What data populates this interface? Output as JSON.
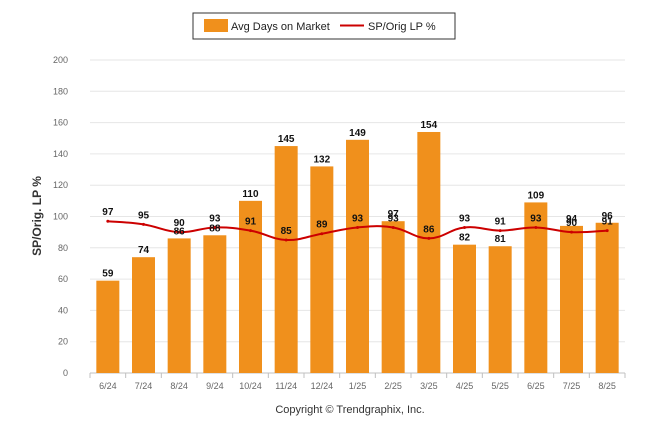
{
  "chart_data": {
    "type": "bar",
    "categories": [
      "6/24",
      "7/24",
      "8/24",
      "9/24",
      "10/24",
      "11/24",
      "12/24",
      "1/25",
      "2/25",
      "3/25",
      "4/25",
      "5/25",
      "6/25",
      "7/25",
      "8/25"
    ],
    "series": [
      {
        "name": "Avg Days on Market",
        "type": "bar",
        "color": "#F0901C",
        "values": [
          59,
          74,
          86,
          88,
          110,
          145,
          132,
          149,
          97,
          154,
          82,
          81,
          109,
          94,
          96
        ]
      },
      {
        "name": "SP/Orig LP %",
        "type": "line",
        "color": "#CC0000",
        "values": [
          97,
          95,
          90,
          93,
          91,
          85,
          89,
          93,
          93,
          86,
          93,
          91,
          93,
          90,
          91
        ]
      }
    ],
    "ylabel": "SP/Orig. LP %",
    "ylim": [
      0,
      200
    ],
    "yticks": [
      0,
      20,
      40,
      60,
      80,
      100,
      120,
      140,
      160,
      180,
      200
    ],
    "grid": true,
    "legend_position": "top-center",
    "credit": "Copyright © Trendgraphix, Inc."
  }
}
